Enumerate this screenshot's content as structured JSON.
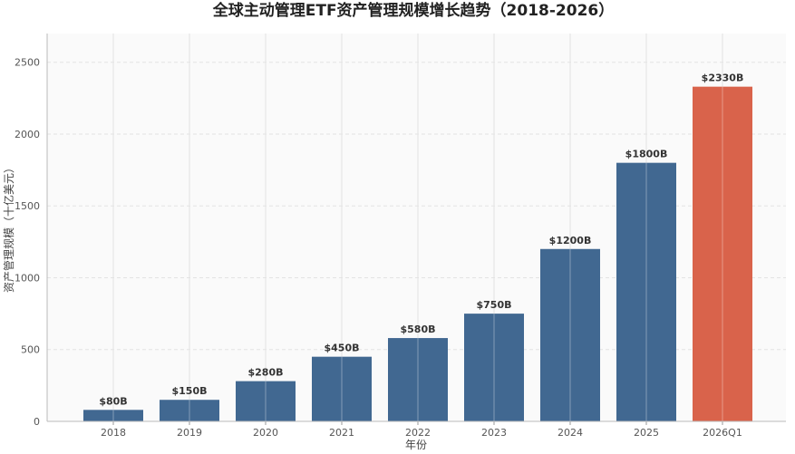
{
  "chart_data": {
    "type": "bar",
    "title": "全球主动管理ETF资产管理规模增长趋势（2018-2026）",
    "xlabel": "年份",
    "ylabel": "资产管理规模（十亿美元）",
    "categories": [
      "2018",
      "2019",
      "2020",
      "2021",
      "2022",
      "2023",
      "2024",
      "2025",
      "2026Q1"
    ],
    "values": [
      80,
      150,
      280,
      450,
      580,
      750,
      1200,
      1800,
      2330
    ],
    "data_labels": [
      "$80B",
      "$150B",
      "$280B",
      "$450B",
      "$580B",
      "$750B",
      "$1200B",
      "$1800B",
      "$2330B"
    ],
    "ylim": [
      0,
      2700
    ],
    "yticks": [
      0,
      500,
      1000,
      1500,
      2000,
      2500
    ],
    "grid": true,
    "colors": {
      "bar": "#416891",
      "highlight_bar": "#d9634b",
      "highlight_category": "2026Q1",
      "plot_background": "#fafafa"
    }
  }
}
